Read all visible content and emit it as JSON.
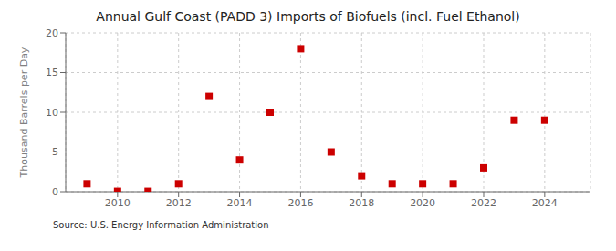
{
  "chart_data": {
    "type": "scatter",
    "title": "Annual Gulf Coast (PADD 3) Imports of Biofuels (incl. Fuel Ethanol)",
    "ylabel": "Thousand Barrels per Day",
    "annotations": [
      "Source: U.S. Energy Information Administration"
    ],
    "x": [
      2009,
      2010,
      2011,
      2012,
      2013,
      2014,
      2015,
      2016,
      2017,
      2018,
      2019,
      2020,
      2021,
      2022,
      2023,
      2024
    ],
    "values": [
      1,
      0.05,
      0.05,
      1,
      12,
      4,
      10,
      18,
      5,
      2,
      1,
      1,
      1,
      3,
      9,
      9
    ],
    "color": "#cc0000",
    "marker": "square",
    "xlim": [
      2008.3,
      2025.5
    ],
    "xticks": [
      2010,
      2012,
      2014,
      2016,
      2018,
      2020,
      2022,
      2024
    ],
    "ylim": [
      0,
      20
    ],
    "yticks": [
      0,
      5,
      10,
      15,
      20
    ],
    "grid": true
  }
}
